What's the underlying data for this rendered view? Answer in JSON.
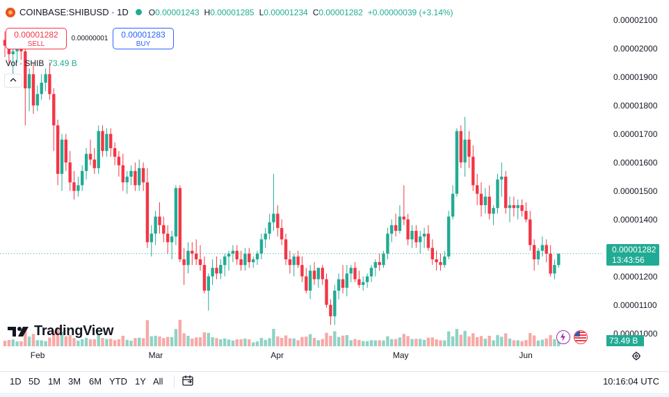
{
  "header": {
    "symbol": "COINBASE:SHIBUSD · 1D",
    "open_label": "O",
    "open": "0.00001243",
    "high_label": "H",
    "high": "0.00001285",
    "low_label": "L",
    "low": "0.00001234",
    "close_label": "C",
    "close": "0.00001282",
    "change": "+0.00000039 (+3.14%)"
  },
  "trade": {
    "sell_price": "0.00001282",
    "sell_label": "SELL",
    "spread": "0.00000001",
    "buy_price": "0.00001283",
    "buy_label": "BUY"
  },
  "volume_legend": {
    "label": "Vol · SHIB",
    "value": "73.49 B"
  },
  "price_axis_labels": [
    "0.00002100",
    "0.00002000",
    "0.00001900",
    "0.00001800",
    "0.00001700",
    "0.00001600",
    "0.00001500",
    "0.00001400",
    "0.00001300",
    "0.00001200",
    "0.00001100",
    "0.00001000"
  ],
  "last_price_tag": {
    "price": "0.00001282",
    "countdown": "13:43:56"
  },
  "volume_tag": "73.49 B",
  "time_axis_labels": [
    "Feb",
    "Mar",
    "Apr",
    "May",
    "Jun"
  ],
  "ranges": [
    "1D",
    "5D",
    "1M",
    "3M",
    "6M",
    "YTD",
    "1Y",
    "All"
  ],
  "clock": "10:16:04 UTC",
  "logo_text": "TradingView",
  "colors": {
    "up": "#22ab94",
    "down": "#f23645",
    "vol_up": "#8fd3c5",
    "vol_down": "#f7a9a7"
  },
  "icons": {
    "settings": "gear-icon",
    "collapse": "chevron-up-icon",
    "date_range": "calendar-icon",
    "event": "lightning-icon",
    "flag": "us-flag-icon"
  },
  "chart_data": {
    "type": "candlestick",
    "series": [
      {
        "name": "SHIBUSD",
        "interval": "1D"
      }
    ],
    "ylim": [
      9.5e-06,
      2.17e-05
    ],
    "scale_step": 1e-06,
    "candles": [
      [
        2.03e-05,
        2.06e-05,
        1.97e-05,
        2.01e-05
      ],
      [
        2.01e-05,
        2.04e-05,
        1.94e-05,
        1.98e-05
      ],
      [
        1.98e-05,
        2.02e-05,
        1.91e-05,
        1.99e-05
      ],
      [
        1.99e-05,
        2.03e-05,
        1.95e-05,
        2.02e-05
      ],
      [
        2.02e-05,
        2.04e-05,
        1.96e-05,
        1.99e-05
      ],
      [
        1.99e-05,
        2.01e-05,
        1.73e-05,
        1.86e-05
      ],
      [
        1.86e-05,
        1.93e-05,
        1.78e-05,
        1.91e-05
      ],
      [
        1.91e-05,
        1.95e-05,
        1.77e-05,
        1.8e-05
      ],
      [
        1.8e-05,
        1.87e-05,
        1.78e-05,
        1.84e-05
      ],
      [
        1.84e-05,
        1.91e-05,
        1.82e-05,
        1.88e-05
      ],
      [
        1.88e-05,
        1.93e-05,
        1.85e-05,
        1.91e-05
      ],
      [
        1.91e-05,
        1.95e-05,
        1.82e-05,
        1.84e-05
      ],
      [
        1.84e-05,
        1.86e-05,
        1.64e-05,
        1.73e-05
      ],
      [
        1.73e-05,
        1.75e-05,
        1.52e-05,
        1.56e-05
      ],
      [
        1.56e-05,
        1.7e-05,
        1.5e-05,
        1.68e-05
      ],
      [
        1.68e-05,
        1.7e-05,
        1.57e-05,
        1.6e-05
      ],
      [
        1.6e-05,
        1.64e-05,
        1.5e-05,
        1.53e-05
      ],
      [
        1.53e-05,
        1.57e-05,
        1.47e-05,
        1.5e-05
      ],
      [
        1.5e-05,
        1.55e-05,
        1.48e-05,
        1.52e-05
      ],
      [
        1.52e-05,
        1.59e-05,
        1.5e-05,
        1.57e-05
      ],
      [
        1.57e-05,
        1.65e-05,
        1.54e-05,
        1.63e-05
      ],
      [
        1.63e-05,
        1.68e-05,
        1.59e-05,
        1.61e-05
      ],
      [
        1.61e-05,
        1.65e-05,
        1.56e-05,
        1.58e-05
      ],
      [
        1.58e-05,
        1.73e-05,
        1.56e-05,
        1.71e-05
      ],
      [
        1.71e-05,
        1.73e-05,
        1.62e-05,
        1.64e-05
      ],
      [
        1.64e-05,
        1.72e-05,
        1.62e-05,
        1.7e-05
      ],
      [
        1.7e-05,
        1.72e-05,
        1.62e-05,
        1.65e-05
      ],
      [
        1.65e-05,
        1.67e-05,
        1.59e-05,
        1.62e-05
      ],
      [
        1.62e-05,
        1.64e-05,
        1.55e-05,
        1.59e-05
      ],
      [
        1.59e-05,
        1.63e-05,
        1.5e-05,
        1.53e-05
      ],
      [
        1.53e-05,
        1.57e-05,
        1.49e-05,
        1.55e-05
      ],
      [
        1.55e-05,
        1.59e-05,
        1.52e-05,
        1.57e-05
      ],
      [
        1.57e-05,
        1.6e-05,
        1.5e-05,
        1.52e-05
      ],
      [
        1.52e-05,
        1.61e-05,
        1.5e-05,
        1.58e-05
      ],
      [
        1.58e-05,
        1.6e-05,
        1.5e-05,
        1.53e-05
      ],
      [
        1.53e-05,
        1.58e-05,
        1.3e-05,
        1.32e-05
      ],
      [
        1.32e-05,
        1.38e-05,
        1.27e-05,
        1.35e-05
      ],
      [
        1.35e-05,
        1.43e-05,
        1.31e-05,
        1.41e-05
      ],
      [
        1.41e-05,
        1.46e-05,
        1.35e-05,
        1.38e-05
      ],
      [
        1.38e-05,
        1.41e-05,
        1.32e-05,
        1.35e-05
      ],
      [
        1.35e-05,
        1.38e-05,
        1.28e-05,
        1.32e-05
      ],
      [
        1.32e-05,
        1.36e-05,
        1.26e-05,
        1.34e-05
      ],
      [
        1.34e-05,
        1.52e-05,
        1.31e-05,
        1.51e-05
      ],
      [
        1.51e-05,
        1.52e-05,
        1.25e-05,
        1.26e-05
      ],
      [
        1.26e-05,
        1.3e-05,
        1.17e-05,
        1.24e-05
      ],
      [
        1.24e-05,
        1.32e-05,
        1.21e-05,
        1.29e-05
      ],
      [
        1.29e-05,
        1.32e-05,
        1.24e-05,
        1.28e-05
      ],
      [
        1.28e-05,
        1.33e-05,
        1.24e-05,
        1.26e-05
      ],
      [
        1.26e-05,
        1.31e-05,
        1.22e-05,
        1.24e-05
      ],
      [
        1.24e-05,
        1.27e-05,
        1.14e-05,
        1.15e-05
      ],
      [
        1.15e-05,
        1.21e-05,
        1.08e-05,
        1.2e-05
      ],
      [
        1.2e-05,
        1.26e-05,
        1.17e-05,
        1.23e-05
      ],
      [
        1.23e-05,
        1.27e-05,
        1.19e-05,
        1.21e-05
      ],
      [
        1.21e-05,
        1.26e-05,
        1.19e-05,
        1.24e-05
      ],
      [
        1.24e-05,
        1.28e-05,
        1.2e-05,
        1.27e-05
      ],
      [
        1.27e-05,
        1.29e-05,
        1.22e-05,
        1.28e-05
      ],
      [
        1.28e-05,
        1.31e-05,
        1.25e-05,
        1.29e-05
      ],
      [
        1.29e-05,
        1.31e-05,
        1.24e-05,
        1.26e-05
      ],
      [
        1.26e-05,
        1.29e-05,
        1.22e-05,
        1.24e-05
      ],
      [
        1.24e-05,
        1.3e-05,
        1.22e-05,
        1.28e-05
      ],
      [
        1.28e-05,
        1.3e-05,
        1.23e-05,
        1.25e-05
      ],
      [
        1.25e-05,
        1.27e-05,
        1.23e-05,
        1.26e-05
      ],
      [
        1.26e-05,
        1.29e-05,
        1.24e-05,
        1.28e-05
      ],
      [
        1.28e-05,
        1.35e-05,
        1.26e-05,
        1.33e-05
      ],
      [
        1.33e-05,
        1.37e-05,
        1.3e-05,
        1.35e-05
      ],
      [
        1.35e-05,
        1.42e-05,
        1.33e-05,
        1.39e-05
      ],
      [
        1.39e-05,
        1.56e-05,
        1.36e-05,
        1.42e-05
      ],
      [
        1.42e-05,
        1.45e-05,
        1.34e-05,
        1.37e-05
      ],
      [
        1.37e-05,
        1.4e-05,
        1.31e-05,
        1.33e-05
      ],
      [
        1.33e-05,
        1.35e-05,
        1.24e-05,
        1.26e-05
      ],
      [
        1.26e-05,
        1.29e-05,
        1.21e-05,
        1.24e-05
      ],
      [
        1.24e-05,
        1.28e-05,
        1.2e-05,
        1.27e-05
      ],
      [
        1.27e-05,
        1.29e-05,
        1.23e-05,
        1.24e-05
      ],
      [
        1.24e-05,
        1.27e-05,
        1.18e-05,
        1.2e-05
      ],
      [
        1.2e-05,
        1.23e-05,
        1.14e-05,
        1.15e-05
      ],
      [
        1.15e-05,
        1.24e-05,
        1.12e-05,
        1.22e-05
      ],
      [
        1.22e-05,
        1.25e-05,
        1.17e-05,
        1.19e-05
      ],
      [
        1.19e-05,
        1.22e-05,
        1.16e-05,
        1.23e-05
      ],
      [
        1.23e-05,
        1.24e-05,
        1.17e-05,
        1.19e-05
      ],
      [
        1.19e-05,
        1.21e-05,
        1.09e-05,
        1.1e-05
      ],
      [
        1.1e-05,
        1.12e-05,
        1.03e-05,
        1.06e-05
      ],
      [
        1.06e-05,
        1.17e-05,
        1.03e-05,
        1.15e-05
      ],
      [
        1.15e-05,
        1.21e-05,
        1.12e-05,
        1.19e-05
      ],
      [
        1.19e-05,
        1.24e-05,
        1.14e-05,
        1.16e-05
      ],
      [
        1.16e-05,
        1.24e-05,
        1.13e-05,
        1.21e-05
      ],
      [
        1.21e-05,
        1.24e-05,
        1.18e-05,
        1.23e-05
      ],
      [
        1.23e-05,
        1.25e-05,
        1.18e-05,
        1.19e-05
      ],
      [
        1.19e-05,
        1.22e-05,
        1.16e-05,
        1.17e-05
      ],
      [
        1.17e-05,
        1.2e-05,
        1.15e-05,
        1.18e-05
      ],
      [
        1.18e-05,
        1.21e-05,
        1.16e-05,
        1.2e-05
      ],
      [
        1.2e-05,
        1.24e-05,
        1.18e-05,
        1.23e-05
      ],
      [
        1.23e-05,
        1.26e-05,
        1.2e-05,
        1.25e-05
      ],
      [
        1.25e-05,
        1.28e-05,
        1.22e-05,
        1.24e-05
      ],
      [
        1.24e-05,
        1.29e-05,
        1.23e-05,
        1.28e-05
      ],
      [
        1.28e-05,
        1.37e-05,
        1.26e-05,
        1.35e-05
      ],
      [
        1.35e-05,
        1.4e-05,
        1.32e-05,
        1.38e-05
      ],
      [
        1.38e-05,
        1.42e-05,
        1.34e-05,
        1.36e-05
      ],
      [
        1.36e-05,
        1.45e-05,
        1.35e-05,
        1.41e-05
      ],
      [
        1.41e-05,
        1.52e-05,
        1.38e-05,
        1.4e-05
      ],
      [
        1.4e-05,
        1.42e-05,
        1.31e-05,
        1.33e-05
      ],
      [
        1.33e-05,
        1.38e-05,
        1.3e-05,
        1.36e-05
      ],
      [
        1.36e-05,
        1.38e-05,
        1.3e-05,
        1.32e-05
      ],
      [
        1.32e-05,
        1.36e-05,
        1.28e-05,
        1.34e-05
      ],
      [
        1.34e-05,
        1.37e-05,
        1.3e-05,
        1.35e-05
      ],
      [
        1.35e-05,
        1.38e-05,
        1.29e-05,
        1.3e-05
      ],
      [
        1.3e-05,
        1.33e-05,
        1.24e-05,
        1.26e-05
      ],
      [
        1.26e-05,
        1.29e-05,
        1.22e-05,
        1.25e-05
      ],
      [
        1.25e-05,
        1.28e-05,
        1.22e-05,
        1.24e-05
      ],
      [
        1.24e-05,
        1.29e-05,
        1.23e-05,
        1.27e-05
      ],
      [
        1.27e-05,
        1.43e-05,
        1.26e-05,
        1.41e-05
      ],
      [
        1.41e-05,
        1.52e-05,
        1.4e-05,
        1.49e-05
      ],
      [
        1.49e-05,
        1.72e-05,
        1.48e-05,
        1.71e-05
      ],
      [
        1.71e-05,
        1.73e-05,
        1.58e-05,
        1.6e-05
      ],
      [
        1.6e-05,
        1.76e-05,
        1.55e-05,
        1.68e-05
      ],
      [
        1.68e-05,
        1.71e-05,
        1.58e-05,
        1.62e-05
      ],
      [
        1.62e-05,
        1.66e-05,
        1.5e-05,
        1.52e-05
      ],
      [
        1.52e-05,
        1.56e-05,
        1.45e-05,
        1.49e-05
      ],
      [
        1.49e-05,
        1.53e-05,
        1.41e-05,
        1.45e-05
      ],
      [
        1.45e-05,
        1.51e-05,
        1.42e-05,
        1.48e-05
      ],
      [
        1.48e-05,
        1.52e-05,
        1.4e-05,
        1.42e-05
      ],
      [
        1.42e-05,
        1.45e-05,
        1.38e-05,
        1.44e-05
      ],
      [
        1.44e-05,
        1.56e-05,
        1.42e-05,
        1.54e-05
      ],
      [
        1.54e-05,
        1.6e-05,
        1.48e-05,
        1.55e-05
      ],
      [
        1.55e-05,
        1.57e-05,
        1.42e-05,
        1.44e-05
      ],
      [
        1.44e-05,
        1.48e-05,
        1.39e-05,
        1.45e-05
      ],
      [
        1.45e-05,
        1.48e-05,
        1.41e-05,
        1.44e-05
      ],
      [
        1.44e-05,
        1.47e-05,
        1.4e-05,
        1.45e-05
      ],
      [
        1.45e-05,
        1.47e-05,
        1.41e-05,
        1.43e-05
      ],
      [
        1.43e-05,
        1.46e-05,
        1.39e-05,
        1.4e-05
      ],
      [
        1.4e-05,
        1.43e-05,
        1.29e-05,
        1.31e-05
      ],
      [
        1.31e-05,
        1.33e-05,
        1.22e-05,
        1.26e-05
      ],
      [
        1.26e-05,
        1.3e-05,
        1.24e-05,
        1.29e-05
      ],
      [
        1.29e-05,
        1.34e-05,
        1.27e-05,
        1.31e-05
      ],
      [
        1.31e-05,
        1.33e-05,
        1.25e-05,
        1.28e-05
      ],
      [
        1.28e-05,
        1.31e-05,
        1.2e-05,
        1.21e-05
      ],
      [
        1.21e-05,
        1.26e-05,
        1.19e-05,
        1.24e-05
      ],
      [
        1.24e-05,
        1.28e-05,
        1.23e-05,
        1.28e-05
      ]
    ],
    "volume_label": "Vol · SHIB",
    "last_volume": "73.49 B",
    "x_month_labels": [
      "Feb",
      "Mar",
      "Apr",
      "May",
      "Jun"
    ]
  }
}
